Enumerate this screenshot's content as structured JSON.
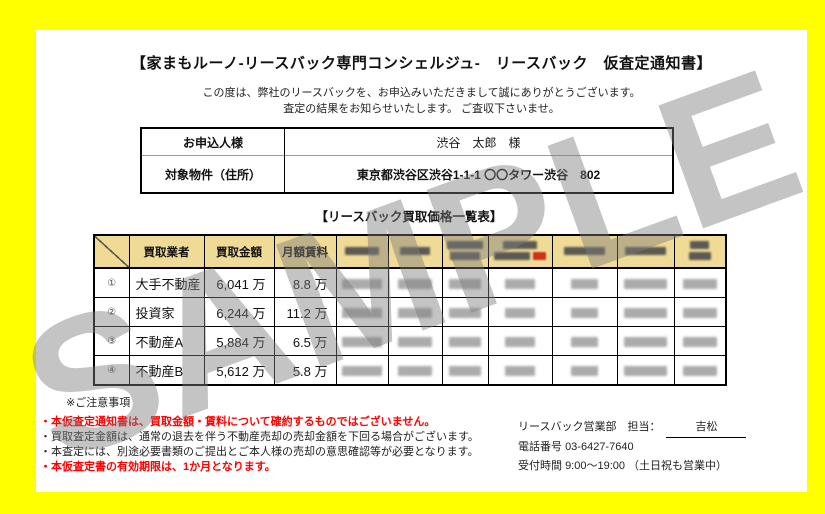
{
  "watermark": "SAMPLE",
  "title": "【家まもルーノ-リースバック専門コンシェルジュ-　リースバック　仮査定通知書】",
  "greeting": [
    "この度は、弊社のリースバックを、お申込みいただきまして誠にありがとうございます。",
    "査定の結果をお知らせいたします。 ご査収下さいませ。"
  ],
  "applicant_table": {
    "rows": [
      {
        "label": "お申込人様",
        "value": "渋谷　太郎　様"
      },
      {
        "label": "対象物件（住所）",
        "value": "東京都渋谷区渋谷1-1-1 〇〇タワー渋谷　802"
      }
    ]
  },
  "price_table": {
    "title": "【リースバック買取価格一覧表】",
    "headers": [
      "",
      "買取業者",
      "買取金額",
      "月額賃料"
    ],
    "redacted_column_count": 7,
    "rows": [
      {
        "no": "①",
        "vendor": "大手不動産",
        "price": "6,041 万",
        "rent": "8.8 万"
      },
      {
        "no": "②",
        "vendor": "投資家",
        "price": "6,244 万",
        "rent": "11.2 万"
      },
      {
        "no": "③",
        "vendor": "不動産A",
        "price": "5,884 万",
        "rent": "6.5 万"
      },
      {
        "no": "④",
        "vendor": "不動産B",
        "price": "5,612 万",
        "rent": "5.8 万"
      }
    ]
  },
  "notes": {
    "heading": "※ご注意事項",
    "items": [
      {
        "text": "・本仮査定通知書は、買取金額・賃料について確約するものではございません。",
        "emphasis": true
      },
      {
        "text": "・買取査定金額は、通常の退去を伴う不動産売却の売却金額を下回る場合がございます。",
        "emphasis": false
      },
      {
        "text": "・本査定には、別途必要書類のご提出とご本人様の売却の意思確認等が必要となります。",
        "emphasis": false
      },
      {
        "text": "・本仮査定書の有効期限は、1か月となります。",
        "emphasis": true
      }
    ]
  },
  "contact": {
    "department_label": "リースバック営業部　担当：",
    "person": "吉松",
    "phone_label": "電話番号",
    "phone": "03-6427-7640",
    "hours_label": "受付時間",
    "hours": "9:00～19:00 （土日祝も営業中）"
  },
  "colors": {
    "border_yellow": "#ffff00",
    "header_tan": "#f0db96",
    "alert_red": "#ff0000",
    "watermark_gray": "#7d7d7d"
  }
}
